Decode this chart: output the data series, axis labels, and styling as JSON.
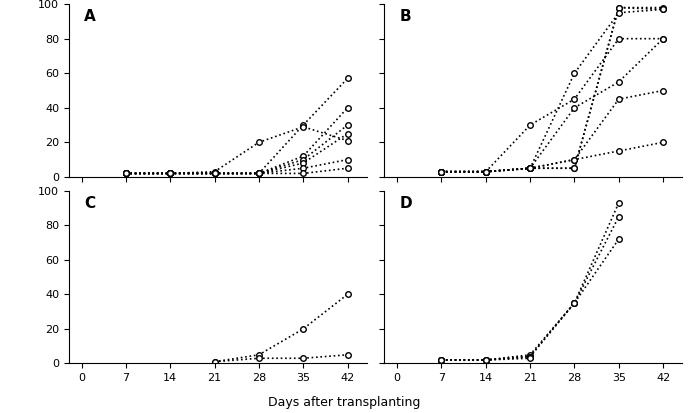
{
  "x_ticks": [
    0,
    7,
    14,
    21,
    28,
    35,
    42
  ],
  "panel_A": {
    "label": "A",
    "series": [
      [
        null,
        2,
        2,
        2,
        2,
        30,
        57
      ],
      [
        null,
        2,
        2,
        2,
        2,
        12,
        40
      ],
      [
        null,
        2,
        2,
        2,
        2,
        10,
        30
      ],
      [
        null,
        2,
        2,
        2,
        2,
        8,
        25
      ],
      [
        null,
        2,
        2,
        3,
        20,
        29,
        21
      ],
      [
        null,
        2,
        2,
        2,
        2,
        5,
        10
      ],
      [
        null,
        2,
        2,
        2,
        2,
        2,
        5
      ]
    ]
  },
  "panel_B": {
    "label": "B",
    "series": [
      [
        null,
        3,
        3,
        5,
        5,
        98,
        97
      ],
      [
        null,
        3,
        3,
        5,
        5,
        98,
        98
      ],
      [
        null,
        3,
        3,
        5,
        60,
        95,
        97
      ],
      [
        null,
        3,
        3,
        30,
        45,
        80,
        80
      ],
      [
        null,
        3,
        3,
        5,
        40,
        55,
        80
      ],
      [
        null,
        3,
        3,
        5,
        10,
        45,
        50
      ],
      [
        null,
        3,
        3,
        5,
        10,
        15,
        20
      ]
    ]
  },
  "panel_C": {
    "label": "C",
    "series": [
      [
        null,
        null,
        null,
        1,
        5,
        20,
        40
      ],
      [
        null,
        null,
        null,
        1,
        3,
        3,
        5
      ]
    ]
  },
  "panel_D": {
    "label": "D",
    "series": [
      [
        null,
        2,
        2,
        5,
        35,
        93,
        null
      ],
      [
        null,
        2,
        2,
        4,
        35,
        85,
        null
      ],
      [
        null,
        2,
        2,
        4,
        35,
        72,
        null
      ],
      [
        null,
        2,
        2,
        3,
        null,
        null,
        null
      ]
    ]
  },
  "xlabel": "Days after transplanting",
  "ylim": [
    0,
    100
  ],
  "line_color": "black",
  "marker": "o",
  "markersize": 4,
  "markerfacecolor": "white",
  "linestyle": "dotted",
  "linewidth": 1.2
}
